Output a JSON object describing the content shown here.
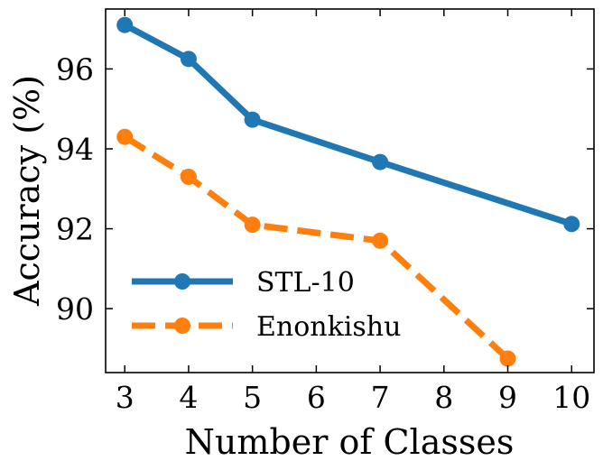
{
  "chart_data": {
    "type": "line",
    "title": "",
    "xlabel": "Number of Classes",
    "ylabel": "Accuracy (%)",
    "xlim": [
      2.7,
      10.35
    ],
    "ylim": [
      88.4,
      97.5
    ],
    "xticks": [
      3,
      4,
      5,
      6,
      7,
      8,
      9,
      10
    ],
    "yticks": [
      90,
      92,
      94,
      96
    ],
    "grid": false,
    "legend_position": "bottom-left",
    "series": [
      {
        "name": "STL-10",
        "color": "#1f77b4",
        "line_style": "solid",
        "marker": "circle",
        "x": [
          3,
          4,
          5,
          7,
          10
        ],
        "y": [
          97.1,
          96.25,
          94.73,
          93.67,
          92.12
        ]
      },
      {
        "name": "Enonkishu",
        "color": "#ff7f0e",
        "line_style": "dashed",
        "marker": "circle",
        "x": [
          3,
          4,
          5,
          7,
          9
        ],
        "y": [
          94.3,
          93.3,
          92.1,
          91.7,
          88.75
        ]
      }
    ]
  }
}
